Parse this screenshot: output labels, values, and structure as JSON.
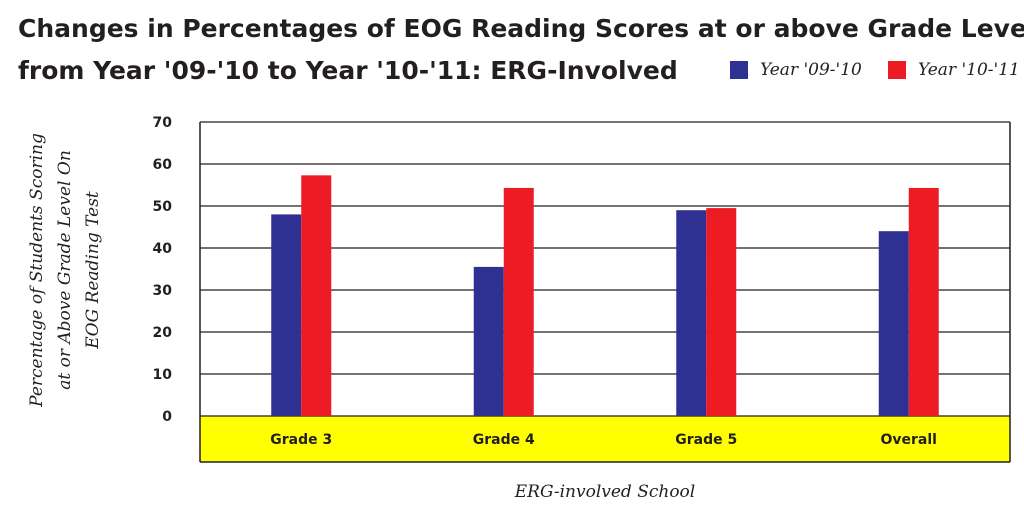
{
  "chart_data": {
    "type": "bar",
    "title_line1": "Changes in Percentages of EOG Reading Scores at or above Grade Level",
    "title_line2": "from Year '09-'10 to Year '10-'11: ERG-Involved",
    "ylabel_lines": [
      "Percentage of Students Scoring",
      "at or Above Grade Level On",
      "EOG Reading Test"
    ],
    "xlabel": "ERG-involved School",
    "categories": [
      "Grade 3",
      "Grade 4",
      "Grade 5",
      "Overall"
    ],
    "series": [
      {
        "name": "Year '09-'10",
        "color": "#2e3192",
        "values": [
          48,
          35.5,
          49,
          44
        ]
      },
      {
        "name": "Year '10-'11",
        "color": "#ed1c24",
        "values": [
          57.3,
          54.3,
          49.5,
          54.3
        ]
      }
    ],
    "ylim": [
      0,
      70
    ],
    "yticks": [
      "70",
      "60",
      "50",
      "40",
      "30",
      "20",
      "10",
      "0"
    ],
    "grid": true,
    "legend_position": "top-right",
    "category_band_color": "#ffff00"
  }
}
